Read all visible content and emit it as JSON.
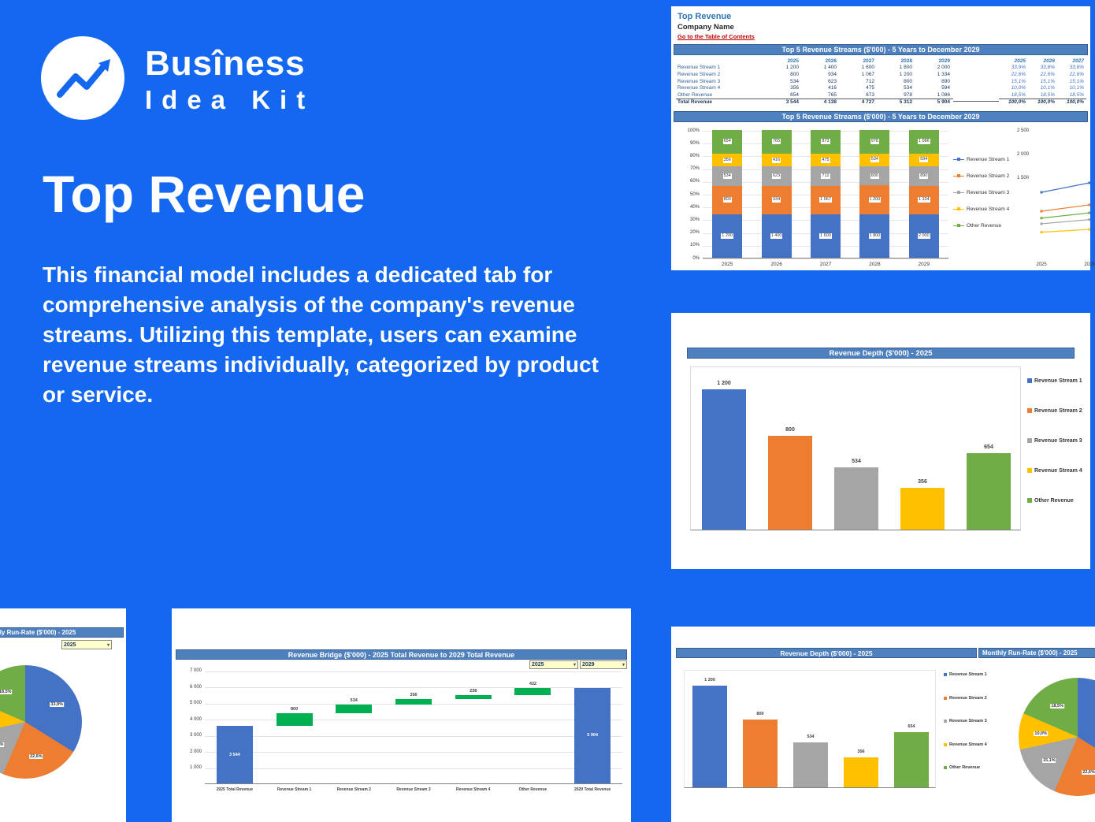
{
  "palette": {
    "background": "#1467EF",
    "panel": "#FFFFFF",
    "header_bar_blue": "#4E80C0",
    "series_colors": [
      "#4472C4",
      "#ED7D31",
      "#A5A5A5",
      "#FFC000",
      "#70AD47"
    ],
    "waterfall_increase": "#00B050",
    "dropdown_fill": "#FFFFCC",
    "link_red": "#C00000",
    "sheet_title_blue": "#2E75B6"
  },
  "hero": {
    "brand_line1": "Busîness",
    "brand_line2": "Idea Kit",
    "title": "Top Revenue",
    "description": "This financial model includes a dedicated tab for comprehensive analysis of the company's revenue streams. Utilizing this template, users can examine revenue streams individually, categorized by product or service."
  },
  "series_names": [
    "Revenue Stream 1",
    "Revenue Stream 2",
    "Revenue Stream 3",
    "Revenue Stream 4",
    "Other Revenue"
  ],
  "sheet": {
    "sheet_title": "Top Revenue",
    "company_name": "Company Name",
    "toc_link": "Go to the Table of Contents",
    "section_header": "Top 5 Revenue Streams ($'000) - 5 Years to December 2029",
    "years": [
      "2025",
      "2026",
      "2027",
      "2028",
      "2029"
    ],
    "pct_years": [
      "2025",
      "2026",
      "2027"
    ],
    "rows": [
      {
        "label": "Revenue Stream 1",
        "values": [
          "1 200",
          "1 400",
          "1 600",
          "1 800",
          "2 000"
        ],
        "pct": [
          "33,9%",
          "33,8%",
          "33,8%"
        ]
      },
      {
        "label": "Revenue Stream 2",
        "values": [
          "800",
          "934",
          "1 067",
          "1 200",
          "1 334"
        ],
        "pct": [
          "22,6%",
          "22,6%",
          "22,6%"
        ]
      },
      {
        "label": "Revenue Stream 3",
        "values": [
          "534",
          "623",
          "712",
          "800",
          "890"
        ],
        "pct": [
          "15,1%",
          "15,1%",
          "15,1%"
        ]
      },
      {
        "label": "Revenue Stream 4",
        "values": [
          "356",
          "416",
          "475",
          "534",
          "594"
        ],
        "pct": [
          "10,0%",
          "10,1%",
          "10,1%"
        ]
      },
      {
        "label": "Other Revenue",
        "values": [
          "654",
          "765",
          "873",
          "978",
          "1 086"
        ],
        "pct": [
          "18,5%",
          "18,5%",
          "18,5%"
        ]
      }
    ],
    "total_row": {
      "label": "Total Revenue",
      "values": [
        "3 544",
        "4 138",
        "4 727",
        "5 312",
        "5 904"
      ],
      "pct": [
        "100,0%",
        "100,0%",
        "100,0%"
      ]
    }
  },
  "chart_data": [
    {
      "id": "stacked",
      "type": "bar",
      "stacked": true,
      "percent_of_total": true,
      "title": "Top 5 Revenue Streams ($'000) - 5 Years to December 2029",
      "categories": [
        "2025",
        "2026",
        "2027",
        "2028",
        "2029"
      ],
      "series": [
        {
          "name": "Revenue Stream 1",
          "color": "#4472C4",
          "values": [
            1200,
            1400,
            1600,
            1800,
            2000
          ]
        },
        {
          "name": "Revenue Stream 2",
          "color": "#ED7D31",
          "values": [
            800,
            934,
            1067,
            1200,
            1334
          ]
        },
        {
          "name": "Revenue Stream 3",
          "color": "#A5A5A5",
          "values": [
            534,
            623,
            712,
            800,
            890
          ]
        },
        {
          "name": "Revenue Stream 4",
          "color": "#FFC000",
          "values": [
            356,
            416,
            475,
            534,
            594
          ]
        },
        {
          "name": "Other Revenue",
          "color": "#70AD47",
          "values": [
            654,
            765,
            873,
            978,
            1086
          ]
        }
      ],
      "y_ticks": [
        "100%",
        "90%",
        "80%",
        "70%",
        "60%",
        "50%",
        "40%",
        "30%",
        "20%",
        "10%",
        "0%"
      ],
      "legend_position": "right"
    },
    {
      "id": "line",
      "type": "line",
      "x": [
        "2025",
        "2026",
        "2027",
        "2028",
        "2029"
      ],
      "x_labels_visible": [
        "2025",
        "2026"
      ],
      "visible_y_ticks": [
        "2 500",
        "2 000",
        "1 500"
      ],
      "series": [
        {
          "name": "Revenue Stream 1",
          "color": "#4472C4",
          "values": [
            1200,
            1400,
            1600,
            1800,
            2000
          ]
        },
        {
          "name": "Revenue Stream 2",
          "color": "#ED7D31",
          "values": [
            800,
            934,
            1067,
            1200,
            1334
          ]
        },
        {
          "name": "Revenue Stream 3",
          "color": "#A5A5A5",
          "values": [
            534,
            623,
            712,
            800,
            890
          ]
        },
        {
          "name": "Revenue Stream 4",
          "color": "#FFC000",
          "values": [
            356,
            416,
            475,
            534,
            594
          ]
        },
        {
          "name": "Other Revenue",
          "color": "#70AD47",
          "values": [
            654,
            765,
            873,
            978,
            1086
          ]
        }
      ]
    },
    {
      "id": "depth",
      "type": "bar",
      "title": "Revenue Depth ($'000) - 2025",
      "categories": [
        "Revenue Stream 1",
        "Revenue Stream 2",
        "Revenue Stream 3",
        "Revenue Stream 4",
        "Other Revenue"
      ],
      "values": [
        1200,
        800,
        534,
        356,
        654
      ],
      "data_labels": [
        "1 200",
        "800",
        "534",
        "356",
        "654"
      ],
      "colors": [
        "#4472C4",
        "#ED7D31",
        "#A5A5A5",
        "#FFC000",
        "#70AD47"
      ],
      "ylim": [
        0,
        1400
      ],
      "legend_position": "right"
    },
    {
      "id": "bridge",
      "type": "bar",
      "subtype": "waterfall",
      "title": "Revenue Bridge ($'000) - 2025 Total Revenue to 2029 Total Revenue",
      "categories": [
        "2025 Total Revenue",
        "Revenue Stream 1",
        "Revenue Stream 2",
        "Revenue Stream 3",
        "Revenue Stream 4",
        "Other Revenue",
        "2029 Total Revenue"
      ],
      "start_value": 3544,
      "deltas": [
        800,
        534,
        356,
        238,
        432
      ],
      "end_value": 5904,
      "data_labels": [
        "3 544",
        "800",
        "534",
        "356",
        "238",
        "432",
        "5 904"
      ],
      "y_ticks": [
        "7 000",
        "6 000",
        "5 000",
        "4 000",
        "3 000",
        "2 000",
        "1 000"
      ],
      "ylim": [
        0,
        7000
      ],
      "year_selectors": [
        "2025",
        "2029"
      ]
    },
    {
      "id": "runrate",
      "type": "pie",
      "title": "Monthly Run-Rate ($'000) - 2025",
      "labels": [
        "Revenue Stream 1",
        "Revenue Stream 2",
        "Revenue Stream 3",
        "Revenue Stream 4",
        "Other Revenue"
      ],
      "values": [
        33.9,
        22.6,
        15.1,
        10.0,
        18.5
      ],
      "slice_labels": [
        "33,9%",
        "22,6%",
        "15,1%",
        "10,0%",
        "18,5%"
      ],
      "selector_year": "2025"
    }
  ]
}
